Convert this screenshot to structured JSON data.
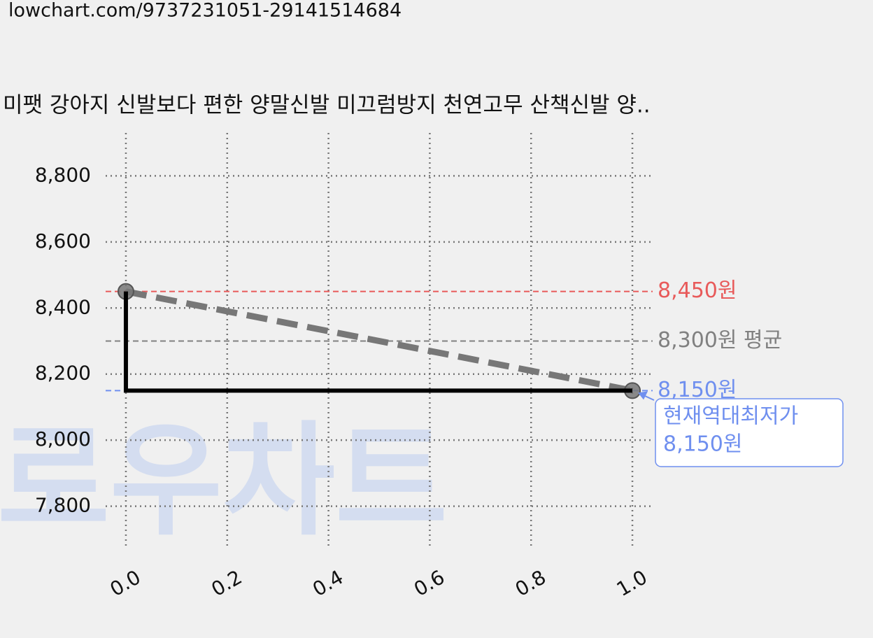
{
  "url": "lowchart.com/9737231051-29141514684",
  "chart_data": {
    "type": "line",
    "title": "미팻 강아지 신발보다 편한 양말신발 미끄럼방지 천연고무 산책신발 양..",
    "watermark": "로우차트",
    "xlim": [
      -0.04,
      1.04
    ],
    "xticks": [
      {
        "value": 0,
        "label": "0.0"
      },
      0.2,
      0.4,
      0.6,
      0.8,
      {
        "value": 1,
        "label": "1.0"
      }
    ],
    "ylim": [
      7670,
      8930
    ],
    "yticks": [
      {
        "value": 7800,
        "label": "7,800"
      },
      {
        "value": 8000,
        "label": "8,000"
      },
      {
        "value": 8200,
        "label": "8,200"
      },
      {
        "value": 8400,
        "label": "8,400"
      },
      {
        "value": 8600,
        "label": "8,600"
      },
      {
        "value": 8800,
        "label": "8,800"
      }
    ],
    "grid": true,
    "series": [
      {
        "color": "#777777",
        "style": "dashed",
        "x": [
          0,
          1
        ],
        "values": [
          8450,
          8150
        ],
        "markers": true
      },
      {
        "color": "#000000",
        "style": "solid",
        "x": [
          0,
          0,
          1
        ],
        "values": [
          8450,
          8150,
          8150
        ]
      }
    ],
    "hlines": [
      {
        "value": 8450,
        "label": "8,450원",
        "color": "#e85a5a"
      },
      {
        "value": 8300,
        "label": "8,300원 평균",
        "color": "#808080"
      },
      {
        "value": 8150,
        "label": "8,150원",
        "color": "#6f8fef"
      }
    ],
    "annotation": {
      "x": 1,
      "y": 8150,
      "lines": [
        "현재역대최저가",
        "8,150원"
      ],
      "color": "#6f8fef"
    }
  }
}
